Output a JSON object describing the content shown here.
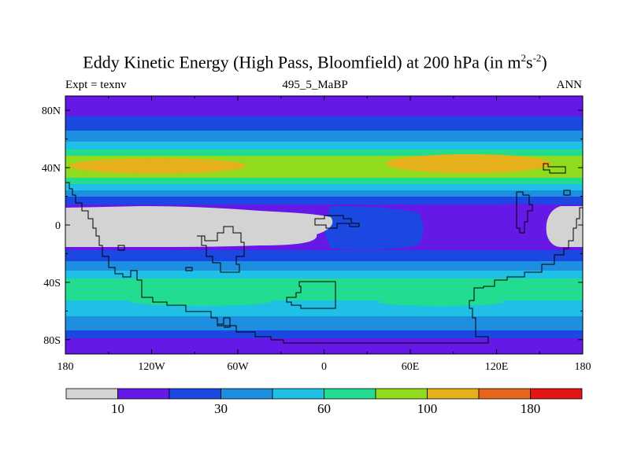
{
  "title": {
    "main": "Eddy Kinetic Energy (High Pass, Bloomfield) at 200 hPa (in m",
    "sup1": "2",
    "mid": "s",
    "sup2": "-2",
    "end": ")"
  },
  "subtitles": {
    "left": "Expt = texnv",
    "center": "495_5_MaBP",
    "right": "ANN"
  },
  "map": {
    "x_ticks": [
      "180",
      "120W",
      "60W",
      "0",
      "60E",
      "120E",
      "180"
    ],
    "y_ticks": [
      "80N",
      "40N",
      "0",
      "40S",
      "80S"
    ],
    "x_tick_values_deg": [
      -180,
      -120,
      -60,
      0,
      60,
      120,
      180
    ],
    "y_tick_values_deg": [
      80,
      40,
      0,
      -40,
      -80
    ],
    "lon_range": [
      -180,
      180
    ],
    "lat_range": [
      -90,
      90
    ]
  },
  "colorbar": {
    "colors": [
      "#d3d3d3",
      "#6619e6",
      "#1a48e0",
      "#1e8ee0",
      "#1fbfe6",
      "#22dc90",
      "#8fdc1e",
      "#e6b01a",
      "#e8641a",
      "#e41414"
    ],
    "labels": [
      "10",
      "30",
      "60",
      "100",
      "180"
    ]
  }
}
